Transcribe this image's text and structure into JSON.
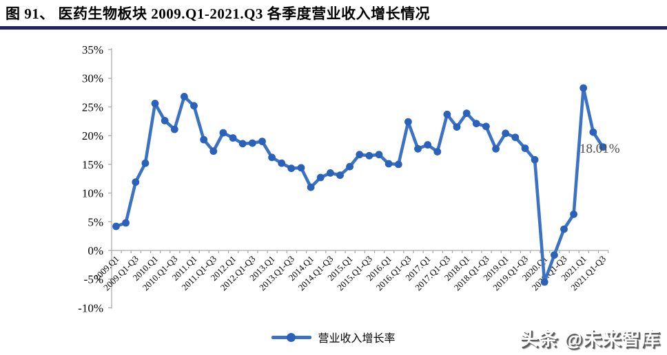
{
  "header": {
    "title": "图 91、 医药生物板块 2009.Q1-2021.Q3 各季度营业收入增长情况"
  },
  "colors": {
    "line": "#3C72C2",
    "marker": "#2A62BA",
    "axis": "#ABABAB",
    "title_rule": "#232266",
    "annotation_text": "#4C4C4C",
    "tick_text": "#000000"
  },
  "legend": {
    "label": "营业收入增长率"
  },
  "annotation": {
    "text": "18.01%"
  },
  "watermark": {
    "text": "头条 @未来智库"
  },
  "chart_data": {
    "type": "line",
    "title": "医药生物板块 2009.Q1-2021.Q3 各季度营业收入增长情况",
    "xlabel": "",
    "ylabel": "",
    "ylim": [
      -10,
      35
    ],
    "grid": false,
    "legend_position": "bottom",
    "y_tick_labels": [
      "35%",
      "30%",
      "25%",
      "20%",
      "15%",
      "10%",
      "5%",
      "0%",
      "-5%",
      "-10%"
    ],
    "x_tick_labels": [
      "2009.Q1",
      "2009.Q1-Q3",
      "2010.Q1",
      "2010.Q1-Q3",
      "2011.Q1",
      "2011.Q1-Q3",
      "2012.Q1",
      "2012.Q1-Q3",
      "2013.Q1",
      "2013.Q1-Q3",
      "2014.Q1",
      "2014.Q1-Q3",
      "2015.Q1",
      "2015.Q1-Q3",
      "2016.Q1",
      "2016.Q1-Q3",
      "2017.Q1",
      "2017.Q1-Q3",
      "2018.Q1",
      "2018.Q1-Q3",
      "2019.Q1",
      "2019.Q1-Q3",
      "2020.Q1",
      "2020.Q1-Q3",
      "2021.Q1",
      "2021.Q1-Q3"
    ],
    "series": [
      {
        "name": "营业收入增长率",
        "unit": "%",
        "points": [
          {
            "period": "2009.Q1",
            "value": 4.2
          },
          {
            "period": "2009.Q1-Q2",
            "value": 4.8
          },
          {
            "period": "2009.Q1-Q3",
            "value": 11.9
          },
          {
            "period": "2009.Q1-Q4",
            "value": 15.2
          },
          {
            "period": "2010.Q1",
            "value": 25.6
          },
          {
            "period": "2010.Q1-Q2",
            "value": 22.6
          },
          {
            "period": "2010.Q1-Q3",
            "value": 21.1
          },
          {
            "period": "2010.Q1-Q4",
            "value": 26.8
          },
          {
            "period": "2011.Q1",
            "value": 25.2
          },
          {
            "period": "2011.Q1-Q2",
            "value": 19.3
          },
          {
            "period": "2011.Q1-Q3",
            "value": 17.3
          },
          {
            "period": "2011.Q1-Q4",
            "value": 20.5
          },
          {
            "period": "2012.Q1",
            "value": 19.6
          },
          {
            "period": "2012.Q1-Q2",
            "value": 18.6
          },
          {
            "period": "2012.Q1-Q3",
            "value": 18.7
          },
          {
            "period": "2012.Q1-Q4",
            "value": 19.0
          },
          {
            "period": "2013.Q1",
            "value": 16.2
          },
          {
            "period": "2013.Q1-Q2",
            "value": 15.2
          },
          {
            "period": "2013.Q1-Q3",
            "value": 14.3
          },
          {
            "period": "2013.Q1-Q4",
            "value": 14.4
          },
          {
            "period": "2014.Q1",
            "value": 11.0
          },
          {
            "period": "2014.Q1-Q2",
            "value": 12.7
          },
          {
            "period": "2014.Q1-Q3",
            "value": 13.5
          },
          {
            "period": "2014.Q1-Q4",
            "value": 13.1
          },
          {
            "period": "2015.Q1",
            "value": 14.6
          },
          {
            "period": "2015.Q1-Q2",
            "value": 16.7
          },
          {
            "period": "2015.Q1-Q3",
            "value": 16.5
          },
          {
            "period": "2015.Q1-Q4",
            "value": 16.7
          },
          {
            "period": "2016.Q1",
            "value": 15.1
          },
          {
            "period": "2016.Q1-Q2",
            "value": 15.0
          },
          {
            "period": "2016.Q1-Q3",
            "value": 22.4
          },
          {
            "period": "2016.Q1-Q4",
            "value": 17.7
          },
          {
            "period": "2017.Q1",
            "value": 18.4
          },
          {
            "period": "2017.Q1-Q2",
            "value": 17.2
          },
          {
            "period": "2017.Q1-Q3",
            "value": 23.7
          },
          {
            "period": "2017.Q1-Q4",
            "value": 21.5
          },
          {
            "period": "2018.Q1",
            "value": 23.9
          },
          {
            "period": "2018.Q1-Q2",
            "value": 22.1
          },
          {
            "period": "2018.Q1-Q3",
            "value": 21.6
          },
          {
            "period": "2018.Q1-Q4",
            "value": 17.7
          },
          {
            "period": "2019.Q1",
            "value": 20.4
          },
          {
            "period": "2019.Q1-Q2",
            "value": 19.7
          },
          {
            "period": "2019.Q1-Q3",
            "value": 17.8
          },
          {
            "period": "2019.Q1-Q4",
            "value": 15.8
          },
          {
            "period": "2020.Q1",
            "value": -5.5
          },
          {
            "period": "2020.Q1-Q2",
            "value": -0.8
          },
          {
            "period": "2020.Q1-Q3",
            "value": 3.7
          },
          {
            "period": "2020.Q1-Q4",
            "value": 6.3
          },
          {
            "period": "2021.Q1",
            "value": 28.3
          },
          {
            "period": "2021.Q1-Q2",
            "value": 20.6
          },
          {
            "period": "2021.Q1-Q3",
            "value": 18.01
          }
        ]
      }
    ],
    "annotations": [
      {
        "text": "18.01%",
        "attached_to": "2021.Q1-Q3"
      }
    ]
  }
}
